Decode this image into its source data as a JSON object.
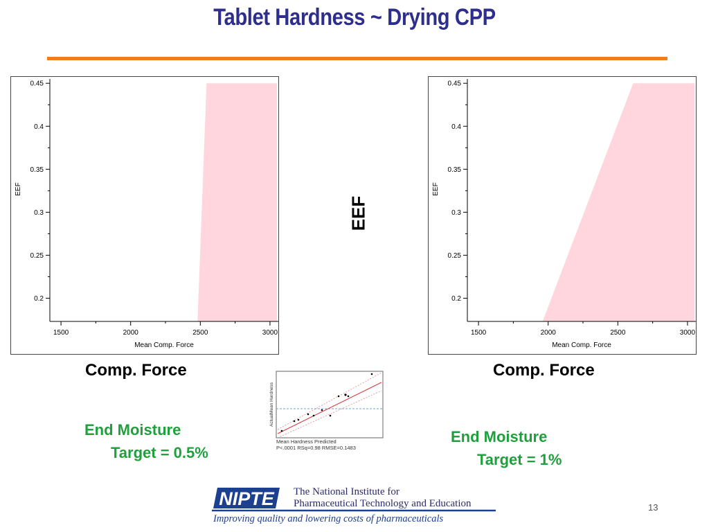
{
  "slide": {
    "title": "Tablet Hardness ~ Drying CPP",
    "page_number": "13",
    "center_axis_label": "EEF",
    "accent_color": "#f07c1a",
    "title_color": "#2e2e8c",
    "moisture_color": "#1fa03c"
  },
  "captions": {
    "left": "Comp. Force",
    "right": "Comp. Force"
  },
  "moisture": {
    "left_line1": "End Moisture",
    "left_line2": "Target = 0.5%",
    "right_line1": "End Moisture",
    "right_line2": "Target = 1%"
  },
  "thumbnail": {
    "ylabel": "ActualMean Hardness",
    "xlabel": "Mean Hardness Predicted",
    "stats": "P<.0001 RSq=0.98 RMSE=0.1483"
  },
  "logo": {
    "acronym": "NIPTE",
    "line1": "The National Institute for",
    "line2": "Pharmaceutical Technology and Education",
    "tagline": "Improving quality and lowering costs of pharmaceuticals"
  },
  "chart_data": [
    {
      "type": "area",
      "xlabel": "Mean Comp. Force",
      "ylabel": "EEF",
      "xlim": [
        1420,
        3060
      ],
      "ylim": [
        0.173,
        0.455
      ],
      "x_ticks": [
        1500,
        2000,
        2500,
        3000
      ],
      "x_minor_ticks": [
        1750,
        2250,
        2750
      ],
      "y_ticks": [
        0.2,
        0.25,
        0.3,
        0.35,
        0.4,
        0.45
      ],
      "y_tick_labels": [
        "0.2",
        "0.25",
        "0.3",
        "0.35",
        "0.4",
        "0.45"
      ],
      "y_minor_ticks": [
        0.225,
        0.275,
        0.325,
        0.375,
        0.425
      ],
      "shaded_region": {
        "color": "#ffd6de",
        "boundary": [
          [
            2480,
            0.173
          ],
          [
            2545,
            0.45
          ]
        ],
        "right_limit": 3050
      },
      "grid": false
    },
    {
      "type": "area",
      "xlabel": "Mean Comp. Force",
      "ylabel": "EEF",
      "xlim": [
        1420,
        3060
      ],
      "ylim": [
        0.173,
        0.455
      ],
      "x_ticks": [
        1500,
        2000,
        2500,
        3000
      ],
      "x_minor_ticks": [
        1750,
        2250,
        2750
      ],
      "y_ticks": [
        0.2,
        0.25,
        0.3,
        0.35,
        0.4,
        0.45
      ],
      "y_tick_labels": [
        "0.2",
        "0.25",
        "0.3",
        "0.35",
        "0.4",
        "0.45"
      ],
      "y_minor_ticks": [
        0.225,
        0.275,
        0.325,
        0.375,
        0.425
      ],
      "shaded_region": {
        "color": "#ffd6de",
        "boundary": [
          [
            1960,
            0.173
          ],
          [
            2610,
            0.45
          ]
        ],
        "right_limit": 3050
      },
      "grid": false
    }
  ]
}
